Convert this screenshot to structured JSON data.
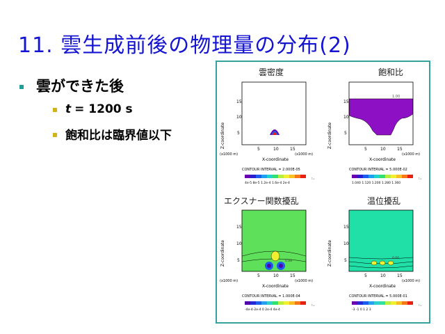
{
  "slide": {
    "title": "11. 雲生成前後の物理量の分布(2)",
    "bullet_main": "雲ができた後",
    "sub_t_var": "t",
    "sub_t_value": "= 1200 s",
    "sub_2": "飽和比は臨界値以下"
  },
  "panels": [
    {
      "title": "雲密度",
      "contour_interval": "CONTOUR INTERVAL = 2.000E-05",
      "colorbar_ticks": "4e-5  8e-5 1.2e-4 1.6e-4  2e-4",
      "colorbar_colors": [
        "#6a00b0",
        "#2a1ed0",
        "#1c5cf0",
        "#1ea0f2",
        "#20d2d0",
        "#30e070",
        "#b4f040",
        "#f0f030",
        "#f8c020",
        "#f87818",
        "#e82010"
      ],
      "field_color": "#ffffff"
    },
    {
      "title": "飽和比",
      "contour_interval": "CONTOUR INTERVAL = 5.000E-02",
      "colorbar_ticks": "1.040  1.120  1.200  1.280  1.360",
      "colorbar_colors": [
        "#6a00b0",
        "#2a1ed0",
        "#1c5cf0",
        "#1ea0f2",
        "#20d2d0",
        "#30e070",
        "#b4f040",
        "#f0f030",
        "#f8c020",
        "#f87818",
        "#e82010"
      ],
      "contour_label": "1.00",
      "field_color": "#8e10c4"
    },
    {
      "title": "エクスナー関数擾乱",
      "contour_interval": "CONTOUR INTERVAL = 1.000E-04",
      "colorbar_ticks": "-4e-4-2e-4  0   2e-4   4e-4",
      "colorbar_colors": [
        "#5000a8",
        "#2828d8",
        "#2060f0",
        "#28a0f0",
        "#30d0d0",
        "#30e070",
        "#b8f040",
        "#f0f030",
        "#f8c020",
        "#f87818",
        "#e82010"
      ],
      "contour_label": "0.00",
      "field_color": "#5fe05a"
    },
    {
      "title": "温位擾乱",
      "contour_interval": "CONTOUR INTERVAL = 5.000E-01",
      "colorbar_ticks": "-3   -1   0    1    2    3",
      "colorbar_colors": [
        "#6a00b0",
        "#2828d8",
        "#1c5cf0",
        "#28a0f0",
        "#30d0d0",
        "#30e0a0",
        "#b8f040",
        "#f0f030",
        "#f8c020",
        "#f87818",
        "#e82010"
      ],
      "contour_label": "0.00",
      "field_color": "#20e0a8"
    }
  ],
  "axes": {
    "xlabel": "X-coordinate",
    "ylabel": "Z-coordinate",
    "xunit": "(x1000 m)",
    "xticks": [
      "5",
      "10",
      "15"
    ],
    "yticks": [
      "5",
      "10",
      "15"
    ],
    "t_label": "t="
  }
}
